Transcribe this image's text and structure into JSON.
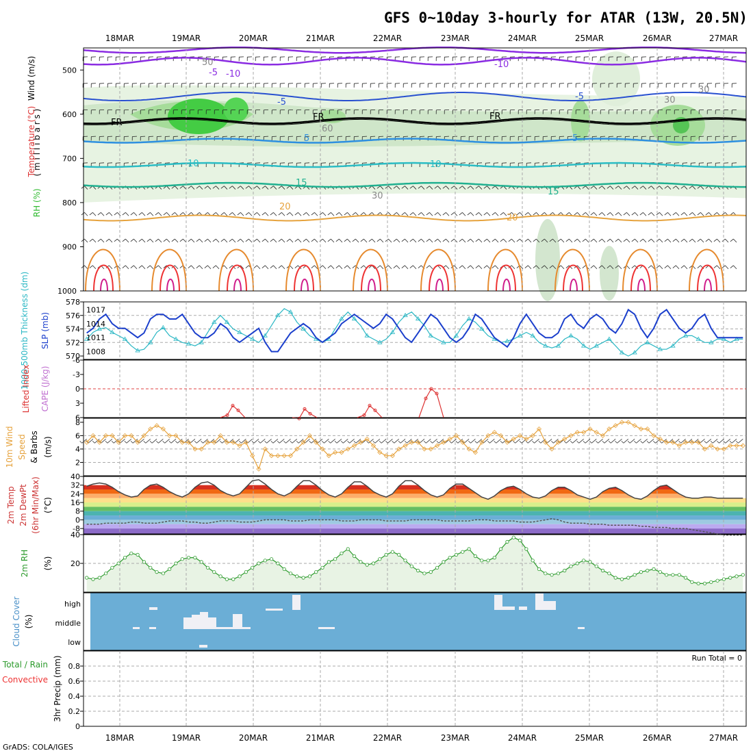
{
  "title": "GFS 0~10day 3-hourly for ATAR (13W, 20.5N)",
  "credit": "GrADS: COLA/IGES",
  "dates": [
    "18MAR",
    "19MAR",
    "20MAR",
    "21MAR",
    "22MAR",
    "23MAR",
    "24MAR",
    "25MAR",
    "26MAR",
    "27MAR"
  ],
  "colors": {
    "temp_cold": "#1a9cff",
    "temp_warm": "#e69a2e",
    "rh": "#33cc33",
    "slp": "#1b3fcc",
    "thick": "#2ab7c4",
    "wind10": "#e6a23c",
    "cloud": "#6baed6",
    "rh2m": "#2b9a2b"
  },
  "panels": {
    "profile": {
      "ylabel_wind": "Wind (m/s)",
      "ylabel_temp": "Temperature (°C)",
      "ylabel_rh": "RH (%)",
      "ylabel_unit": "( m i l l i b a r s )",
      "ticks": [
        "500",
        "600",
        "700",
        "800",
        "900",
        "1000"
      ],
      "contour_labels": [
        "-10",
        "-10",
        "-5",
        "-5",
        "-5",
        "5",
        "5",
        "10",
        "10",
        "15",
        "15",
        "20",
        "20",
        "FR",
        "FR",
        "FR",
        "30",
        "30",
        "30",
        "50",
        "60"
      ]
    },
    "slp": {
      "ylabel_thick": "1000-500mb Thickness (dm)",
      "ylabel_slp": "SLP (mb)",
      "ticks_left": [
        "578",
        "576",
        "574",
        "572",
        "570"
      ],
      "ticks_right": [
        "1017",
        "1014",
        "1011",
        "1008"
      ]
    },
    "cape": {
      "ylabel_li": "Lifted Index",
      "ylabel_cape": "CAPE (J/kg)",
      "ticks": [
        "-6",
        "-3",
        "0",
        "3",
        "6"
      ]
    },
    "wind10": {
      "ylabel1": "10m Wind",
      "ylabel2": "Speed",
      "ylabel3": "& Barbs",
      "ylabel4": "(m/s)",
      "ticks": [
        "8",
        "6",
        "4",
        "2"
      ]
    },
    "temp2m": {
      "ylabel1": "2m Temp",
      "ylabel2": "2m DewPt",
      "ylabel3": "(6hr Min/Max)",
      "ylabel4": "(°C)",
      "ticks": [
        "40",
        "32",
        "24",
        "16",
        "8",
        "0",
        "-8"
      ]
    },
    "rh2m": {
      "ylabel1": "2m RH",
      "ylabel2": "(%)",
      "ticks": [
        "40",
        "20"
      ]
    },
    "cloud": {
      "ylabel1": "Cloud Cover",
      "ylabel2": "(%)",
      "levels": [
        "high",
        "middle",
        "low"
      ]
    },
    "precip": {
      "ylabel1": "Total / Rain",
      "ylabel2": "Convective",
      "ylabel3": "3hr Precip (mm)",
      "ticks": [
        "0.8",
        "0.6",
        "0.4",
        "0.2",
        "0"
      ],
      "run_total": "Run Total = 0"
    }
  },
  "chart_data": [
    {
      "type": "line",
      "name": "Sea level pressure",
      "unit": "mb",
      "x_step_hours": 3,
      "values": [
        1012,
        1013,
        1015,
        1016,
        1014,
        1013,
        1013,
        1012,
        1011,
        1012,
        1015,
        1016,
        1016,
        1015,
        1015,
        1016,
        1014,
        1012,
        1011,
        1011,
        1012,
        1014,
        1013,
        1011,
        1010,
        1011,
        1012,
        1013,
        1010,
        1008,
        1008,
        1010,
        1012,
        1013,
        1014,
        1013,
        1011,
        1010,
        1011,
        1012,
        1014,
        1015,
        1016,
        1015,
        1014,
        1013,
        1014,
        1016,
        1015,
        1013,
        1011,
        1010,
        1012,
        1014,
        1016,
        1015,
        1013,
        1011,
        1010,
        1011,
        1013,
        1016,
        1015,
        1013,
        1011,
        1010,
        1009,
        1011,
        1014,
        1016,
        1014,
        1012,
        1011,
        1011,
        1012,
        1015,
        1016,
        1014,
        1013,
        1015,
        1016,
        1015,
        1013,
        1012,
        1014,
        1017,
        1016,
        1013,
        1011,
        1013,
        1016,
        1017,
        1015,
        1013,
        1012,
        1013,
        1015,
        1016,
        1013,
        1011,
        1011,
        1011,
        1011,
        1011
      ]
    },
    {
      "type": "line",
      "name": "1000-500mb thickness",
      "unit": "dm",
      "x_step_hours": 3,
      "values": [
        572.5,
        573.5,
        574.0,
        574.2,
        573.5,
        573.0,
        572.5,
        571.5,
        570.8,
        571.0,
        572.0,
        573.5,
        574.2,
        573.0,
        572.5,
        572.0,
        571.8,
        571.5,
        572.0,
        573.5,
        575.0,
        576.0,
        575.0,
        574.0,
        573.5,
        573.0,
        572.5,
        572.0,
        573.0,
        574.5,
        576.0,
        577.0,
        576.5,
        575.0,
        574.0,
        573.0,
        572.5,
        572.0,
        572.5,
        574.0,
        575.5,
        576.5,
        575.5,
        574.5,
        573.0,
        572.5,
        572.0,
        572.5,
        573.5,
        575.0,
        576.0,
        576.5,
        575.5,
        574.5,
        573.0,
        572.5,
        572.0,
        572.0,
        573.0,
        574.5,
        575.5,
        575.0,
        574.0,
        573.0,
        572.5,
        572.0,
        572.2,
        572.5,
        573.0,
        573.5,
        573.0,
        572.0,
        571.5,
        571.2,
        571.5,
        572.5,
        573.0,
        572.5,
        571.5,
        571.0,
        571.5,
        572.0,
        572.5,
        571.5,
        570.5,
        570.0,
        570.5,
        571.5,
        572.0,
        571.5,
        571.0,
        571.0,
        571.5,
        572.5,
        573.0,
        573.0,
        572.5,
        572.0,
        572.0,
        572.5,
        572.5,
        572.0,
        572.5,
        572.5
      ]
    },
    {
      "type": "line",
      "name": "Lifted Index",
      "unit": "",
      "x_step_hours": 3,
      "values": [
        6,
        6,
        6,
        6,
        6,
        6,
        6,
        6,
        6,
        6,
        6,
        6,
        6,
        6,
        6,
        6,
        6,
        6,
        6,
        6,
        6,
        6,
        6,
        6,
        6,
        6,
        6,
        6,
        6,
        6,
        6,
        6,
        6,
        6,
        6,
        6,
        6,
        6,
        6,
        6,
        6,
        6,
        6,
        6,
        6,
        6,
        6,
        6,
        6,
        4.5,
        3,
        4,
        6,
        6,
        6,
        6,
        6,
        6,
        6,
        6,
        6,
        6,
        6,
        6,
        6,
        6,
        6,
        6,
        6,
        6,
        6,
        6,
        6,
        6,
        6,
        6,
        6,
        6,
        6,
        6,
        6,
        6,
        6,
        6,
        6,
        6,
        6,
        6,
        6,
        6,
        6,
        6,
        6,
        6,
        6,
        6,
        6,
        6,
        6,
        6,
        6,
        6,
        6,
        6
      ]
    },
    {
      "type": "line",
      "name": "10m wind speed",
      "unit": "m/s",
      "x_step_hours": 3,
      "values": [
        5,
        6,
        5,
        6,
        6,
        5,
        6,
        6,
        5,
        6,
        7,
        7.5,
        7,
        6,
        6,
        5,
        5,
        4,
        4,
        5,
        5,
        6,
        5,
        5,
        4.5,
        5,
        3,
        1,
        4,
        3,
        3,
        3,
        3,
        4,
        5,
        6,
        5,
        4,
        3,
        3.5,
        3.5,
        4,
        4.5,
        5,
        5.5,
        4.5,
        3.5,
        3,
        3,
        4,
        4.5,
        5,
        5,
        4,
        4,
        4.5,
        5,
        5.5,
        6,
        5,
        4,
        3.5,
        5,
        6,
        6.5,
        6,
        5,
        5.5,
        6,
        5.5,
        6,
        7,
        5,
        4,
        5,
        5.5,
        6,
        6.5,
        6.5,
        7,
        6.5,
        6,
        7,
        7.5,
        8,
        8,
        7.5,
        7,
        7,
        6,
        5.5,
        5,
        5,
        4.5,
        5,
        5,
        5,
        4,
        4.5,
        4,
        4,
        4.5,
        4.5,
        4.5
      ]
    },
    {
      "type": "line",
      "name": "2m temperature",
      "unit": "°C",
      "x_step_hours": 3,
      "values": [
        31,
        33,
        34,
        33,
        30,
        26,
        23,
        21,
        22,
        28,
        32,
        33,
        30,
        26,
        23,
        21,
        24,
        30,
        34,
        35,
        32,
        27,
        24,
        22,
        24,
        30,
        36,
        37,
        33,
        28,
        24,
        22,
        25,
        31,
        36,
        36,
        32,
        27,
        23,
        21,
        24,
        30,
        35,
        35,
        31,
        26,
        23,
        21,
        24,
        31,
        36,
        36,
        32,
        27,
        23,
        21,
        23,
        29,
        33,
        33,
        29,
        25,
        21,
        19,
        22,
        27,
        30,
        31,
        28,
        24,
        21,
        20,
        22,
        27,
        30,
        30,
        27,
        23,
        21,
        19,
        21,
        26,
        29,
        30,
        27,
        23,
        20,
        19,
        22,
        27,
        31,
        32,
        28,
        24,
        21,
        20,
        20,
        21,
        21,
        20,
        20,
        20,
        20,
        20
      ]
    },
    {
      "type": "line",
      "name": "2m dew point",
      "unit": "°C",
      "x_step_hours": 3,
      "values": [
        -4,
        -4,
        -4,
        -3,
        -3,
        -3,
        -3,
        -2,
        -2,
        -3,
        -3,
        -3,
        -2,
        -1,
        -1,
        -1,
        -2,
        -2,
        -3,
        -3,
        -2,
        -1,
        -1,
        -1,
        -2,
        -2,
        -2,
        -1,
        0,
        0,
        0,
        0,
        -1,
        -1,
        -1,
        0,
        0,
        0,
        0,
        0,
        -1,
        -1,
        -1,
        0,
        0,
        0,
        0,
        -1,
        -1,
        -1,
        -1,
        0,
        0,
        0,
        0,
        0,
        -1,
        -1,
        -1,
        -1,
        -1,
        0,
        0,
        0,
        -1,
        -1,
        -1,
        -1,
        -2,
        -2,
        -2,
        -1,
        0,
        1,
        0,
        -2,
        -3,
        -3,
        -3,
        -4,
        -4,
        -4,
        -5,
        -5,
        -5,
        -5,
        -5,
        -6,
        -6,
        -7,
        -7,
        -7,
        -8,
        -8,
        -8,
        -9,
        -10,
        -11,
        -12,
        -13,
        -14,
        -14,
        -14,
        -14
      ]
    },
    {
      "type": "area",
      "name": "2m relative humidity",
      "unit": "%",
      "x_step_hours": 3,
      "values": [
        10,
        9,
        10,
        13,
        17,
        20,
        24,
        27,
        26,
        21,
        17,
        14,
        13,
        16,
        20,
        23,
        24,
        24,
        21,
        17,
        14,
        11,
        9,
        9,
        11,
        14,
        17,
        20,
        22,
        23,
        20,
        16,
        13,
        11,
        10,
        11,
        14,
        17,
        21,
        23,
        27,
        30,
        25,
        21,
        19,
        20,
        23,
        26,
        28,
        26,
        22,
        18,
        15,
        13,
        14,
        17,
        21,
        24,
        26,
        28,
        30,
        25,
        22,
        22,
        24,
        30,
        35,
        38,
        36,
        30,
        22,
        16,
        13,
        12,
        13,
        15,
        18,
        20,
        22,
        21,
        18,
        15,
        13,
        10,
        9,
        10,
        12,
        14,
        15,
        16,
        14,
        12,
        12,
        12,
        10,
        7,
        6,
        6,
        7,
        8,
        9,
        10,
        11,
        12
      ]
    },
    {
      "type": "table",
      "name": "Cloud cover",
      "rows": [
        "high",
        "middle",
        "low"
      ],
      "note": "Mostly clear; isolated high cloud near 20MAR, 23-24MAR; middle cloud 19-20MAR"
    },
    {
      "type": "bar",
      "name": "3hr precipitation",
      "unit": "mm",
      "ylim": [
        0,
        1
      ],
      "values": [],
      "run_total": 0
    }
  ]
}
